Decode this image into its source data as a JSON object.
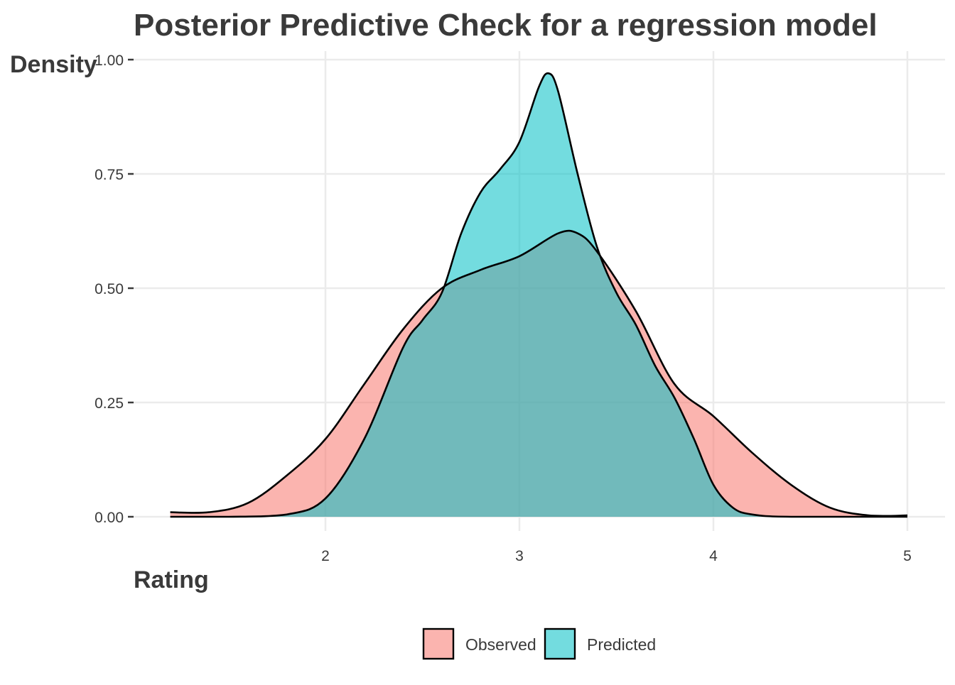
{
  "chart_data": {
    "type": "area",
    "title": "Posterior Predictive Check for a regression model",
    "xlabel": "Rating",
    "ylabel": "Density",
    "xlim": [
      1.2,
      5.0
    ],
    "ylim": [
      0,
      1.0
    ],
    "x_ticks": [
      2,
      3,
      4,
      5
    ],
    "x_tick_labels": [
      "2",
      "3",
      "4",
      "5"
    ],
    "y_ticks": [
      0,
      0.25,
      0.5,
      0.75,
      1.0
    ],
    "y_tick_labels": [
      "0.00",
      "0.25",
      "0.50",
      "0.75",
      "1.00"
    ],
    "grid": true,
    "legend_position": "bottom",
    "series": [
      {
        "name": "Observed",
        "color": "#f8766d",
        "points": [
          [
            1.2,
            0.01
          ],
          [
            1.4,
            0.01
          ],
          [
            1.6,
            0.03
          ],
          [
            1.8,
            0.09
          ],
          [
            2.0,
            0.17
          ],
          [
            2.2,
            0.29
          ],
          [
            2.4,
            0.41
          ],
          [
            2.6,
            0.5
          ],
          [
            2.8,
            0.54
          ],
          [
            3.0,
            0.57
          ],
          [
            3.2,
            0.62
          ],
          [
            3.3,
            0.62
          ],
          [
            3.4,
            0.58
          ],
          [
            3.6,
            0.45
          ],
          [
            3.8,
            0.29
          ],
          [
            4.0,
            0.22
          ],
          [
            4.2,
            0.14
          ],
          [
            4.4,
            0.07
          ],
          [
            4.6,
            0.02
          ],
          [
            4.8,
            0.003
          ],
          [
            5.0,
            0.003
          ]
        ]
      },
      {
        "name": "Predicted",
        "color": "#00bfc4",
        "points": [
          [
            1.2,
            0.0
          ],
          [
            1.5,
            0.0
          ],
          [
            1.8,
            0.005
          ],
          [
            2.0,
            0.04
          ],
          [
            2.2,
            0.17
          ],
          [
            2.4,
            0.37
          ],
          [
            2.5,
            0.43
          ],
          [
            2.6,
            0.49
          ],
          [
            2.7,
            0.62
          ],
          [
            2.8,
            0.71
          ],
          [
            2.9,
            0.76
          ],
          [
            3.0,
            0.82
          ],
          [
            3.1,
            0.94
          ],
          [
            3.15,
            0.97
          ],
          [
            3.2,
            0.93
          ],
          [
            3.3,
            0.75
          ],
          [
            3.4,
            0.59
          ],
          [
            3.5,
            0.49
          ],
          [
            3.6,
            0.42
          ],
          [
            3.7,
            0.33
          ],
          [
            3.8,
            0.26
          ],
          [
            3.9,
            0.17
          ],
          [
            4.0,
            0.07
          ],
          [
            4.1,
            0.02
          ],
          [
            4.2,
            0.005
          ],
          [
            4.4,
            0.0
          ],
          [
            5.0,
            0.0
          ]
        ]
      }
    ]
  }
}
